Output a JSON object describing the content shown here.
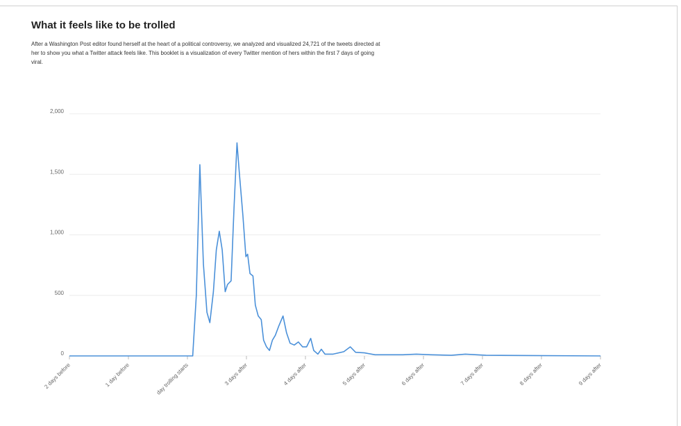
{
  "chart_data": {
    "type": "line",
    "title": "What it feels like to be trolled",
    "subtitle": "After a Washington Post editor found herself at the heart of a political controversy, we analyzed and visualized 24,721 of the tweets directed at her to show you what a Twitter attack feels like. This booklet is a visualization of every Twitter mention of hers within the first 7 days of going viral.",
    "x": [
      0,
      2.09,
      2.15,
      2.21,
      2.27,
      2.33,
      2.38,
      2.44,
      2.49,
      2.54,
      2.59,
      2.64,
      2.68,
      2.74,
      2.79,
      2.84,
      2.88,
      2.94,
      2.99,
      3.02,
      3.06,
      3.11,
      3.15,
      3.2,
      3.25,
      3.29,
      3.34,
      3.39,
      3.44,
      3.49,
      3.55,
      3.62,
      3.68,
      3.74,
      3.81,
      3.88,
      3.95,
      4.02,
      4.09,
      4.14,
      4.21,
      4.27,
      4.33,
      4.47,
      4.65,
      4.76,
      4.85,
      5.0,
      5.18,
      5.65,
      5.88,
      6.12,
      6.47,
      6.71,
      7.06,
      9
    ],
    "values": [
      0,
      0,
      500,
      1580,
      760,
      360,
      275,
      530,
      875,
      1030,
      875,
      530,
      590,
      620,
      1220,
      1760,
      1510,
      1160,
      820,
      840,
      680,
      660,
      420,
      330,
      300,
      130,
      75,
      45,
      130,
      170,
      250,
      330,
      190,
      105,
      90,
      115,
      75,
      75,
      145,
      45,
      15,
      55,
      15,
      15,
      35,
      75,
      30,
      25,
      10,
      10,
      15,
      10,
      5,
      15,
      5,
      0
    ],
    "color": "#4a90d9",
    "xlim": [
      0,
      9
    ],
    "xticks": [
      {
        "value": 0,
        "label": "2 days before"
      },
      {
        "value": 1,
        "label": "1 day before"
      },
      {
        "value": 2,
        "label": "day trolling starts"
      },
      {
        "value": 3,
        "label": "3 days after"
      },
      {
        "value": 4,
        "label": "4 days after"
      },
      {
        "value": 5,
        "label": "5 days after"
      },
      {
        "value": 6,
        "label": "6 days after"
      },
      {
        "value": 7,
        "label": "7 days after"
      },
      {
        "value": 8,
        "label": "8 days after"
      },
      {
        "value": 9,
        "label": "9 days after"
      }
    ],
    "ylim": [
      0,
      2000
    ],
    "yticks": [
      0,
      500,
      {
        "value": 1000,
        "label": "1,000"
      },
      {
        "value": 1500,
        "label": "1,500"
      },
      {
        "value": 2000,
        "label": "2,000"
      }
    ],
    "grid": true
  }
}
